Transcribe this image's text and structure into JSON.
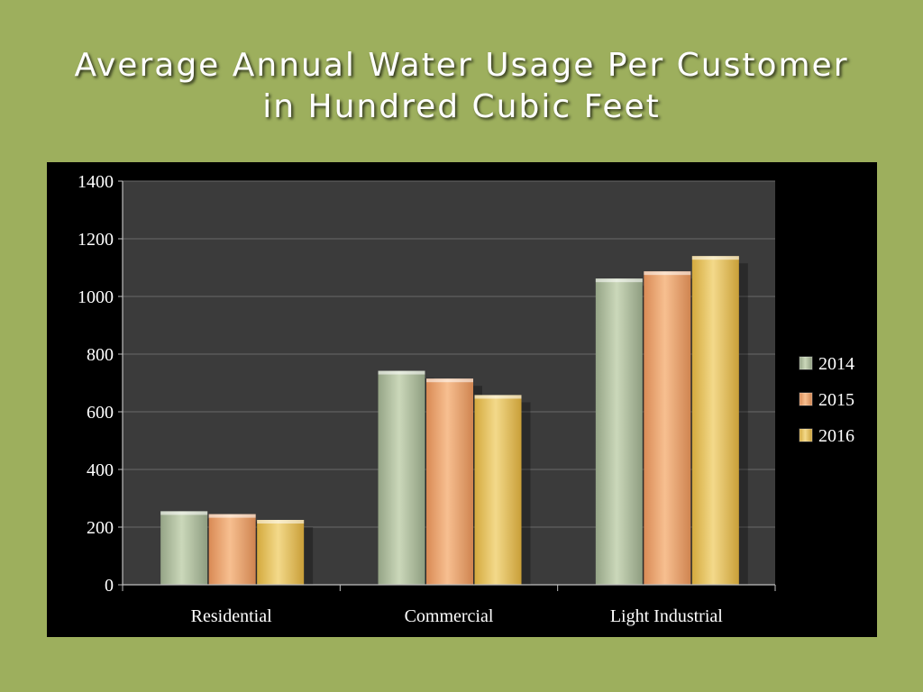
{
  "slide": {
    "title_line1": "Average Annual Water Usage Per Customer",
    "title_line2": "in Hundred Cubic Feet"
  },
  "colors": {
    "background": "#9daf5d",
    "chart_background": "#000000",
    "plot_area": "#3b3b3b",
    "series": [
      "#b8c6a6",
      "#efa570",
      "#e6c25a"
    ]
  },
  "chart_data": {
    "type": "bar",
    "categories": [
      "Residential",
      "Commercial",
      "Light Industrial"
    ],
    "series": [
      {
        "name": "2014",
        "values": [
          255,
          742,
          1062
        ]
      },
      {
        "name": "2015",
        "values": [
          245,
          715,
          1087
        ]
      },
      {
        "name": "2016",
        "values": [
          225,
          658,
          1140
        ]
      }
    ],
    "yticks": [
      0,
      200,
      400,
      600,
      800,
      1000,
      1200,
      1400
    ],
    "ylim": [
      0,
      1400
    ],
    "grid": true,
    "legend_position": "right"
  }
}
